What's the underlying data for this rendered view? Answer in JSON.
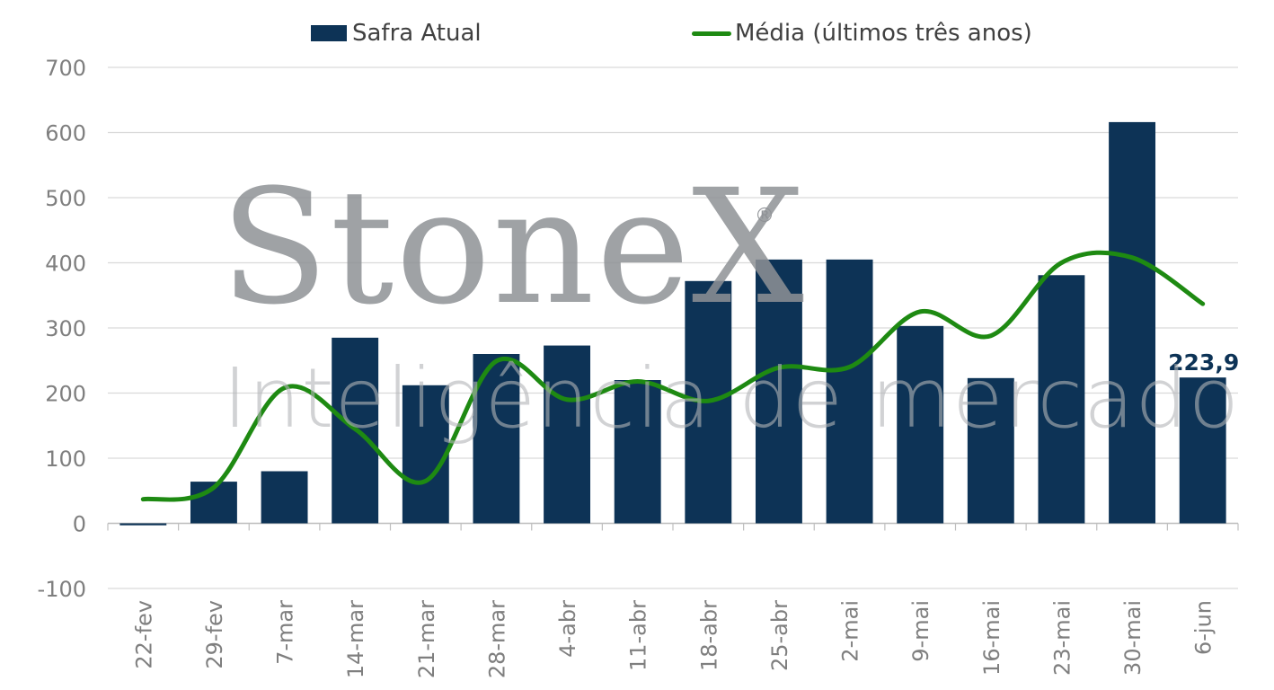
{
  "watermark": {
    "brand": "StoneX",
    "registered": "®",
    "subtitle": "Inteligência de mercado"
  },
  "legend": {
    "bar_label": "Safra Atual",
    "line_label": "Média (últimos três anos)"
  },
  "colors": {
    "bar": "#0d3356",
    "line": "#1e8a12",
    "grid": "#d9d9d9",
    "axis_text": "#7f7f7f"
  },
  "chart_data": {
    "type": "bar",
    "title": "",
    "xlabel": "",
    "ylabel": "",
    "ylim": [
      -100,
      700
    ],
    "yticks": [
      -100,
      0,
      100,
      200,
      300,
      400,
      500,
      600,
      700
    ],
    "grid": true,
    "legend_position": "top",
    "categories": [
      "22-fev",
      "29-fev",
      "7-mar",
      "14-mar",
      "21-mar",
      "28-mar",
      "4-abr",
      "11-abr",
      "18-abr",
      "25-abr",
      "2-mai",
      "9-mai",
      "16-mai",
      "23-mai",
      "30-mai",
      "6-jun"
    ],
    "series": [
      {
        "name": "Safra Atual",
        "type": "bar",
        "values": [
          -3,
          64,
          80,
          285,
          212,
          260,
          273,
          220,
          372,
          405,
          405,
          303,
          223,
          381,
          616,
          223.9
        ]
      },
      {
        "name": "Média (últimos três anos)",
        "type": "line",
        "smooth": true,
        "values": [
          37,
          55,
          208,
          145,
          65,
          249,
          190,
          218,
          188,
          239,
          240,
          325,
          288,
          400,
          408,
          337
        ]
      }
    ],
    "annotations": [
      {
        "category": "6-jun",
        "text": "223,9"
      }
    ]
  }
}
